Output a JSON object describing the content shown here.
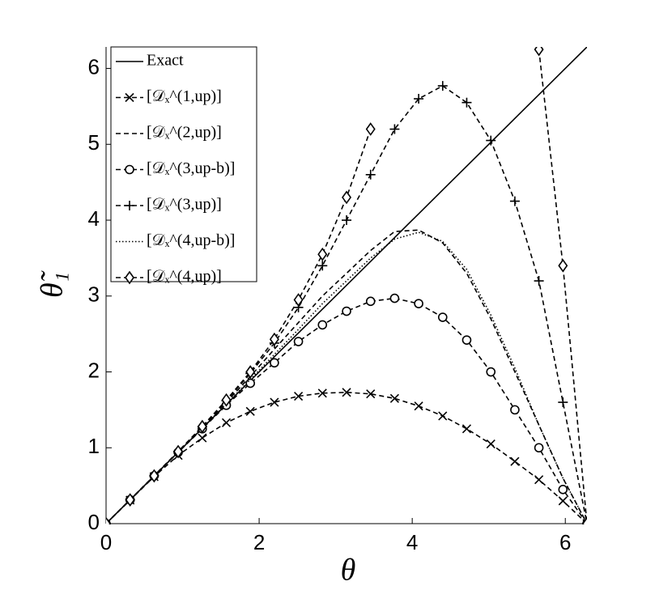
{
  "chart_data": {
    "type": "line",
    "x_label": "θ",
    "y_label": "θ̃₁",
    "xlim": [
      0,
      6.2832
    ],
    "ylim": [
      0,
      6.2832
    ],
    "xticks": [
      0,
      2,
      4,
      6
    ],
    "yticks": [
      0,
      1,
      2,
      3,
      4,
      5,
      6
    ],
    "legend": "upper left",
    "x": [
      0,
      0.314,
      0.628,
      0.942,
      1.257,
      1.571,
      1.885,
      2.199,
      2.513,
      2.827,
      3.142,
      3.456,
      3.77,
      4.084,
      4.398,
      4.712,
      5.027,
      5.341,
      5.655,
      5.969,
      6.283
    ],
    "series": [
      {
        "name": "Exact",
        "color": "#000000",
        "dash": "solid",
        "marker": "none",
        "values": [
          0,
          0.314,
          0.628,
          0.942,
          1.257,
          1.571,
          1.885,
          2.199,
          2.513,
          2.827,
          3.142,
          3.456,
          3.77,
          4.084,
          4.398,
          4.712,
          5.027,
          5.341,
          5.655,
          5.969,
          6.283
        ]
      },
      {
        "name": "[𝒟ₓ^(1,up)]",
        "color": "#000000",
        "dash": "dashed",
        "marker": "x",
        "values": [
          0,
          0.31,
          0.62,
          0.9,
          1.13,
          1.33,
          1.48,
          1.6,
          1.68,
          1.72,
          1.73,
          1.71,
          1.65,
          1.55,
          1.42,
          1.25,
          1.05,
          0.82,
          0.58,
          0.3,
          0
        ]
      },
      {
        "name": "[𝒟ₓ^(2,up)]",
        "color": "#000000",
        "dash": "dashed",
        "marker": "none",
        "values": [
          0,
          0.314,
          0.63,
          0.95,
          1.27,
          1.6,
          1.94,
          2.3,
          2.65,
          3.0,
          3.3,
          3.6,
          3.85,
          3.87,
          3.7,
          3.3,
          2.7,
          2.0,
          1.3,
          0.6,
          0
        ]
      },
      {
        "name": "[𝒟ₓ^(3,up-b)]",
        "color": "#000000",
        "dash": "dashed",
        "marker": "o",
        "values": [
          0,
          0.314,
          0.63,
          0.94,
          1.25,
          1.56,
          1.85,
          2.12,
          2.4,
          2.62,
          2.8,
          2.93,
          2.97,
          2.9,
          2.72,
          2.42,
          2.0,
          1.5,
          1.0,
          0.45,
          0
        ]
      },
      {
        "name": "[𝒟ₓ^(3,up)]",
        "color": "#000000",
        "dash": "dashed",
        "marker": "+",
        "values": [
          0,
          0.314,
          0.63,
          0.95,
          1.28,
          1.62,
          1.98,
          2.38,
          2.85,
          3.4,
          4.0,
          4.6,
          5.2,
          5.6,
          5.77,
          5.55,
          5.05,
          4.25,
          3.2,
          1.6,
          0
        ]
      },
      {
        "name": "[𝒟ₓ^(4,up-b)]",
        "color": "#000000",
        "dash": "dotted",
        "marker": "none",
        "values": [
          0,
          0.314,
          0.63,
          0.94,
          1.26,
          1.58,
          1.9,
          2.23,
          2.56,
          2.9,
          3.2,
          3.5,
          3.75,
          3.84,
          3.72,
          3.35,
          2.75,
          2.05,
          1.3,
          0.6,
          0
        ]
      },
      {
        "name": "[𝒟ₓ^(4,up)]",
        "color": "#000000",
        "dash": "dashed",
        "marker": "diamond",
        "values": [
          0,
          0.314,
          0.63,
          0.95,
          1.28,
          1.63,
          2.0,
          2.43,
          2.95,
          3.55,
          4.3,
          5.2,
          null,
          null,
          null,
          null,
          null,
          null,
          6.25,
          3.4,
          0
        ]
      }
    ]
  }
}
